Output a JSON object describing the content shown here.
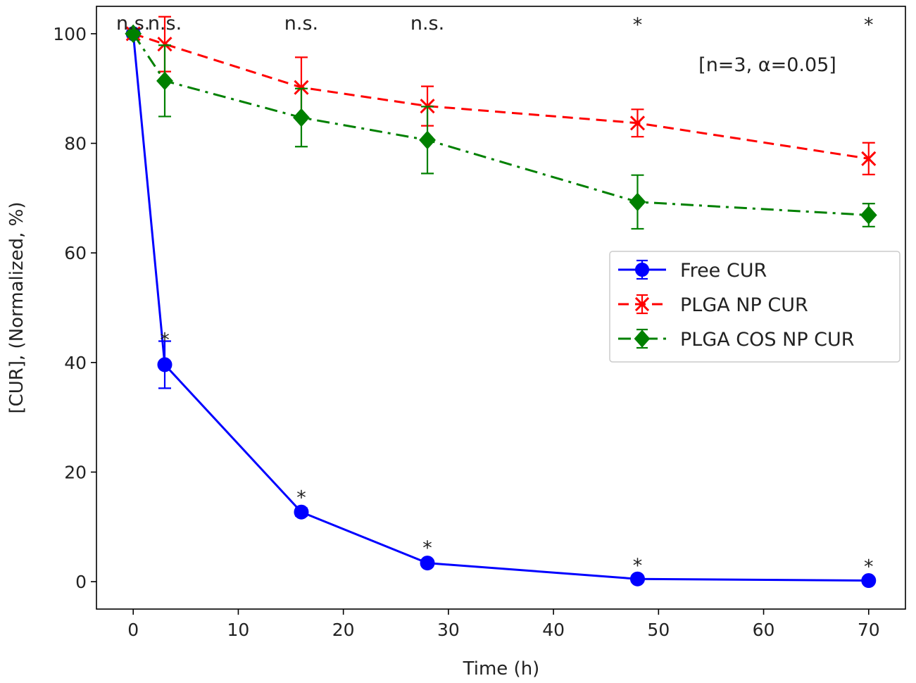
{
  "chart_data": {
    "type": "line",
    "title": "",
    "xlabel": "Time (h)",
    "ylabel": "[CUR], (Normalized, %)",
    "xlim": [
      -3.5,
      73.5
    ],
    "ylim": [
      -5,
      105
    ],
    "xticks": [
      0,
      10,
      20,
      30,
      40,
      50,
      60,
      70
    ],
    "yticks": [
      0,
      20,
      40,
      60,
      80,
      100
    ],
    "grid": false,
    "legend_position": "center-right",
    "x": [
      0,
      3,
      16,
      28,
      48,
      70
    ],
    "series": [
      {
        "name": "Free CUR",
        "color": "#0000ff",
        "linestyle": "solid",
        "marker": "circle",
        "values": [
          100,
          39.6,
          12.7,
          3.4,
          0.5,
          0.2
        ],
        "errors": [
          0.3,
          4.3,
          0.7,
          0.5,
          0.3,
          0.2
        ]
      },
      {
        "name": "PLGA NP CUR",
        "color": "#ff0000",
        "linestyle": "dashed",
        "marker": "x",
        "values": [
          100,
          98.1,
          90.2,
          86.8,
          83.7,
          77.2
        ],
        "errors": [
          0.3,
          5.0,
          5.5,
          3.6,
          2.5,
          2.9
        ]
      },
      {
        "name": "PLGA COS NP CUR",
        "color": "#008000",
        "linestyle": "dashdot",
        "marker": "diamond",
        "values": [
          100,
          91.4,
          84.7,
          80.6,
          69.3,
          66.9
        ],
        "errors": [
          0.3,
          6.5,
          5.3,
          6.1,
          4.9,
          2.1
        ]
      }
    ],
    "annotations": {
      "note": "[n=3, α=0.05]",
      "top": [
        {
          "x": 0,
          "text": "n.s."
        },
        {
          "x": 3,
          "text": "n.s."
        },
        {
          "x": 16,
          "text": "n.s."
        },
        {
          "x": 28,
          "text": "n.s."
        },
        {
          "x": 48,
          "text": "*"
        },
        {
          "x": 70,
          "text": "*"
        }
      ],
      "lower": [
        {
          "x": 3,
          "y": 44.8,
          "text": "*"
        },
        {
          "x": 16,
          "y": 16.0,
          "text": "*"
        },
        {
          "x": 28,
          "y": 6.8,
          "text": "*"
        },
        {
          "x": 48,
          "y": 3.6,
          "text": "*"
        },
        {
          "x": 70,
          "y": 3.4,
          "text": "*"
        }
      ]
    }
  }
}
